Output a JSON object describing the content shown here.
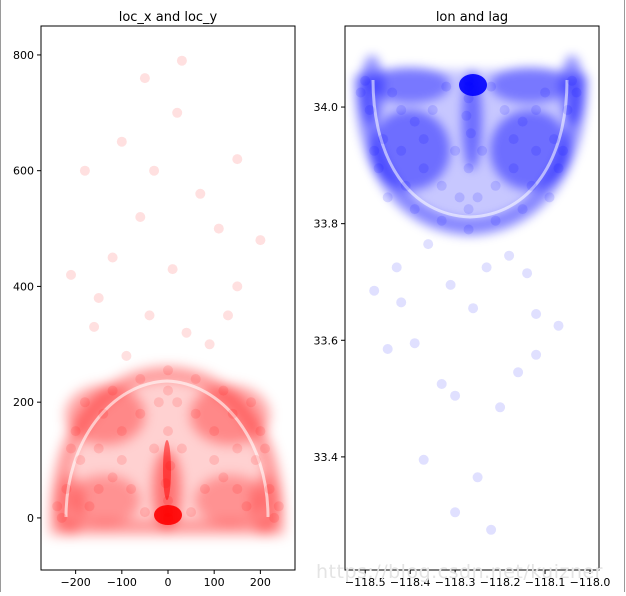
{
  "chart_data": [
    {
      "type": "scatter",
      "title": "loc_x and loc_y",
      "xlabel": "",
      "ylabel": "",
      "xlim": [
        -275,
        275
      ],
      "ylim": [
        -90,
        850
      ],
      "xticks": [
        -200,
        -100,
        0,
        100,
        200
      ],
      "xtick_labels": [
        "−200",
        "−100",
        "0",
        "100",
        "200"
      ],
      "yticks": [
        0,
        200,
        400,
        600,
        800
      ],
      "ytick_labels": [
        "0",
        "200",
        "400",
        "600",
        "800"
      ],
      "grid": false,
      "color": "#ff0000",
      "point_alpha": 0.05,
      "points": [
        [
          0,
          0
        ],
        [
          0,
          10
        ],
        [
          0,
          30
        ],
        [
          -5,
          60
        ],
        [
          5,
          90
        ],
        [
          0,
          150
        ],
        [
          0,
          220
        ],
        [
          0,
          255
        ],
        [
          -100,
          100
        ],
        [
          100,
          100
        ],
        [
          -150,
          50
        ],
        [
          150,
          50
        ],
        [
          -200,
          150
        ],
        [
          200,
          150
        ],
        [
          -180,
          200
        ],
        [
          180,
          200
        ],
        [
          -120,
          220
        ],
        [
          120,
          220
        ],
        [
          -60,
          240
        ],
        [
          60,
          240
        ],
        [
          -220,
          50
        ],
        [
          220,
          50
        ],
        [
          -230,
          0
        ],
        [
          230,
          0
        ],
        [
          -50,
          10
        ],
        [
          50,
          10
        ],
        [
          -100,
          150
        ],
        [
          100,
          150
        ],
        [
          -150,
          120
        ],
        [
          150,
          120
        ],
        [
          -80,
          50
        ],
        [
          80,
          50
        ],
        [
          -30,
          120
        ],
        [
          30,
          120
        ],
        [
          -190,
          100
        ],
        [
          190,
          100
        ],
        [
          -140,
          180
        ],
        [
          140,
          180
        ],
        [
          -210,
          120
        ],
        [
          210,
          120
        ],
        [
          -170,
          20
        ],
        [
          170,
          20
        ],
        [
          -120,
          70
        ],
        [
          120,
          70
        ],
        [
          -60,
          180
        ],
        [
          60,
          180
        ],
        [
          -20,
          200
        ],
        [
          20,
          200
        ],
        [
          -240,
          20
        ],
        [
          240,
          20
        ],
        [
          -90,
          280
        ],
        [
          90,
          300
        ],
        [
          -40,
          350
        ],
        [
          40,
          320
        ],
        [
          -150,
          380
        ],
        [
          150,
          400
        ],
        [
          -120,
          450
        ],
        [
          110,
          500
        ],
        [
          -60,
          520
        ],
        [
          70,
          560
        ],
        [
          -100,
          650
        ],
        [
          20,
          700
        ],
        [
          -50,
          760
        ],
        [
          30,
          790
        ],
        [
          150,
          620
        ],
        [
          -180,
          600
        ],
        [
          200,
          480
        ],
        [
          -210,
          420
        ],
        [
          130,
          350
        ],
        [
          -160,
          330
        ],
        [
          10,
          430
        ],
        [
          -30,
          600
        ]
      ]
    },
    {
      "type": "scatter",
      "title": "lon and lag",
      "xlabel": "",
      "ylabel": "",
      "xlim": [
        -118.545,
        -117.98
      ],
      "ylim": [
        33.206,
        34.139
      ],
      "xticks": [
        -118.5,
        -118.4,
        -118.3,
        -118.2,
        -118.1,
        -118.0
      ],
      "xtick_labels": [
        "−118.5",
        "−118.4",
        "−118.3",
        "−118.2",
        "−118.1",
        "−118.0"
      ],
      "yticks": [
        33.4,
        33.6,
        33.8,
        34.0
      ],
      "ytick_labels": [
        "33.4",
        "33.6",
        "33.8",
        "34.0"
      ],
      "grid": false,
      "color": "#0000ff",
      "point_alpha": 0.05,
      "points": [
        [
          -118.27,
          34.045
        ],
        [
          -118.27,
          34.035
        ],
        [
          -118.27,
          34.015
        ],
        [
          -118.275,
          33.985
        ],
        [
          -118.265,
          33.955
        ],
        [
          -118.27,
          33.895
        ],
        [
          -118.27,
          33.825
        ],
        [
          -118.27,
          33.79
        ],
        [
          -118.37,
          33.945
        ],
        [
          -118.17,
          33.945
        ],
        [
          -118.42,
          33.995
        ],
        [
          -118.12,
          33.995
        ],
        [
          -118.47,
          33.895
        ],
        [
          -118.07,
          33.895
        ],
        [
          -118.45,
          33.845
        ],
        [
          -118.09,
          33.845
        ],
        [
          -118.39,
          33.825
        ],
        [
          -118.15,
          33.825
        ],
        [
          -118.33,
          33.805
        ],
        [
          -118.21,
          33.805
        ],
        [
          -118.49,
          33.995
        ],
        [
          -118.05,
          33.995
        ],
        [
          -118.5,
          34.045
        ],
        [
          -118.04,
          34.045
        ],
        [
          -118.32,
          34.035
        ],
        [
          -118.22,
          34.035
        ],
        [
          -118.37,
          33.895
        ],
        [
          -118.17,
          33.895
        ],
        [
          -118.42,
          33.925
        ],
        [
          -118.12,
          33.925
        ],
        [
          -118.35,
          33.995
        ],
        [
          -118.19,
          33.995
        ],
        [
          -118.3,
          33.925
        ],
        [
          -118.24,
          33.925
        ],
        [
          -118.46,
          33.945
        ],
        [
          -118.08,
          33.945
        ],
        [
          -118.41,
          33.865
        ],
        [
          -118.13,
          33.865
        ],
        [
          -118.48,
          33.925
        ],
        [
          -118.06,
          33.925
        ],
        [
          -118.44,
          34.025
        ],
        [
          -118.1,
          34.025
        ],
        [
          -118.39,
          33.975
        ],
        [
          -118.15,
          33.975
        ],
        [
          -118.33,
          33.865
        ],
        [
          -118.21,
          33.865
        ],
        [
          -118.29,
          33.845
        ],
        [
          -118.25,
          33.845
        ],
        [
          -118.51,
          34.025
        ],
        [
          -118.03,
          34.025
        ],
        [
          -118.36,
          33.765
        ],
        [
          -118.18,
          33.745
        ],
        [
          -118.31,
          33.695
        ],
        [
          -118.23,
          33.725
        ],
        [
          -118.42,
          33.665
        ],
        [
          -118.12,
          33.645
        ],
        [
          -118.39,
          33.595
        ],
        [
          -118.16,
          33.545
        ],
        [
          -118.33,
          33.525
        ],
        [
          -118.2,
          33.485
        ],
        [
          -118.37,
          33.395
        ],
        [
          -118.25,
          33.365
        ],
        [
          -118.3,
          33.305
        ],
        [
          -118.22,
          33.275
        ],
        [
          -118.12,
          33.575
        ],
        [
          -118.45,
          33.585
        ],
        [
          -118.07,
          33.625
        ],
        [
          -118.48,
          33.685
        ],
        [
          -118.14,
          33.715
        ],
        [
          -118.43,
          33.725
        ],
        [
          -118.26,
          33.655
        ],
        [
          -118.3,
          33.505
        ]
      ]
    }
  ]
}
